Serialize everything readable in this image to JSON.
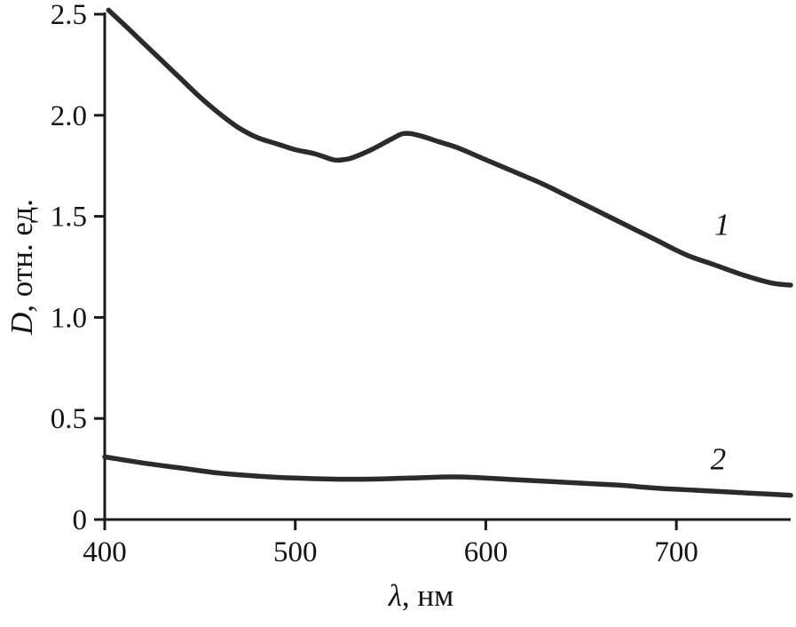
{
  "chart_data": {
    "type": "line",
    "title": "",
    "xlabel": "λ, нм",
    "ylabel": "D, отн. ед.",
    "xlim": [
      400,
      760
    ],
    "ylim": [
      0,
      2.5
    ],
    "x_ticks": [
      400,
      500,
      600,
      700
    ],
    "x_tick_labels": [
      "400",
      "500",
      "600",
      "700"
    ],
    "y_ticks": [
      0,
      0.5,
      1.0,
      1.5,
      2.0,
      2.5
    ],
    "y_tick_labels": [
      "0",
      "0.5",
      "1.0",
      "1.5",
      "2.0",
      "2.5"
    ],
    "grid": false,
    "legend_position": "in-plot numeric labels",
    "axis_color": "#1a1a1a",
    "line_color": "#2b2b2b",
    "series": [
      {
        "name": "1",
        "label": "1",
        "label_at": [
          724,
          1.46
        ],
        "x": [
          402,
          410,
          420,
          430,
          440,
          450,
          460,
          470,
          480,
          490,
          500,
          510,
          520,
          525,
          530,
          540,
          550,
          557,
          565,
          575,
          585,
          600,
          615,
          630,
          645,
          660,
          675,
          690,
          705,
          720,
          735,
          750,
          760
        ],
        "y": [
          2.52,
          2.45,
          2.36,
          2.27,
          2.18,
          2.09,
          2.01,
          1.94,
          1.89,
          1.86,
          1.83,
          1.81,
          1.78,
          1.78,
          1.79,
          1.83,
          1.88,
          1.91,
          1.9,
          1.87,
          1.84,
          1.78,
          1.72,
          1.66,
          1.59,
          1.52,
          1.45,
          1.38,
          1.31,
          1.26,
          1.21,
          1.17,
          1.16
        ]
      },
      {
        "name": "2",
        "label": "2",
        "label_at": [
          722,
          0.3
        ],
        "x": [
          400,
          420,
          440,
          460,
          480,
          500,
          520,
          540,
          560,
          575,
          590,
          610,
          630,
          650,
          670,
          690,
          710,
          730,
          750,
          760
        ],
        "y": [
          0.31,
          0.28,
          0.255,
          0.23,
          0.215,
          0.205,
          0.2,
          0.2,
          0.205,
          0.21,
          0.21,
          0.2,
          0.19,
          0.18,
          0.17,
          0.155,
          0.145,
          0.135,
          0.125,
          0.12
        ]
      }
    ]
  }
}
